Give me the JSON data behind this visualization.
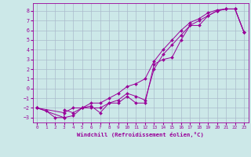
{
  "xlabel": "Windchill (Refroidissement éolien,°C)",
  "line_color": "#990099",
  "bg_color": "#cce8e8",
  "grid_color": "#aabbcc",
  "xlim": [
    -0.5,
    23.5
  ],
  "ylim": [
    -3.5,
    8.8
  ],
  "xticks": [
    0,
    1,
    2,
    3,
    4,
    5,
    6,
    7,
    8,
    9,
    10,
    11,
    12,
    13,
    14,
    15,
    16,
    17,
    18,
    19,
    20,
    21,
    22,
    23
  ],
  "yticks": [
    -3,
    -2,
    -1,
    0,
    1,
    2,
    3,
    4,
    5,
    6,
    7,
    8
  ],
  "s1_x": [
    0,
    1,
    2,
    3,
    3,
    4,
    5,
    6,
    7,
    8,
    9,
    10,
    11,
    12,
    13,
    14,
    15,
    16,
    17,
    18,
    19,
    20,
    21,
    22,
    23
  ],
  "s1_y": [
    -2.0,
    -2.3,
    -3.0,
    -3.0,
    -2.2,
    -2.5,
    -2.0,
    -1.8,
    -2.5,
    -1.5,
    -1.5,
    -0.8,
    -1.5,
    -1.5,
    2.5,
    3.0,
    3.2,
    5.0,
    6.5,
    6.5,
    7.5,
    8.0,
    8.2,
    8.2,
    5.8
  ],
  "s2_x": [
    0,
    3,
    4,
    5,
    6,
    7,
    8,
    9,
    10,
    11,
    12,
    13,
    14,
    15,
    16,
    17,
    18,
    19,
    20,
    21,
    22,
    23
  ],
  "s2_y": [
    -2.0,
    -3.0,
    -2.8,
    -2.0,
    -2.0,
    -2.0,
    -1.5,
    -1.2,
    -0.5,
    -0.8,
    -1.2,
    2.0,
    3.5,
    4.5,
    5.5,
    6.5,
    7.0,
    7.5,
    8.0,
    8.2,
    8.2,
    5.8
  ],
  "s3_x": [
    0,
    3,
    4,
    5,
    6,
    7,
    8,
    9,
    10,
    11,
    12,
    13,
    14,
    15,
    16,
    17,
    18,
    19,
    20,
    21,
    22,
    23
  ],
  "s3_y": [
    -2.0,
    -2.5,
    -2.0,
    -2.0,
    -1.5,
    -1.5,
    -1.0,
    -0.5,
    0.2,
    0.5,
    1.0,
    2.8,
    4.0,
    5.0,
    6.0,
    6.8,
    7.2,
    7.8,
    8.1,
    8.2,
    8.2,
    5.8
  ]
}
